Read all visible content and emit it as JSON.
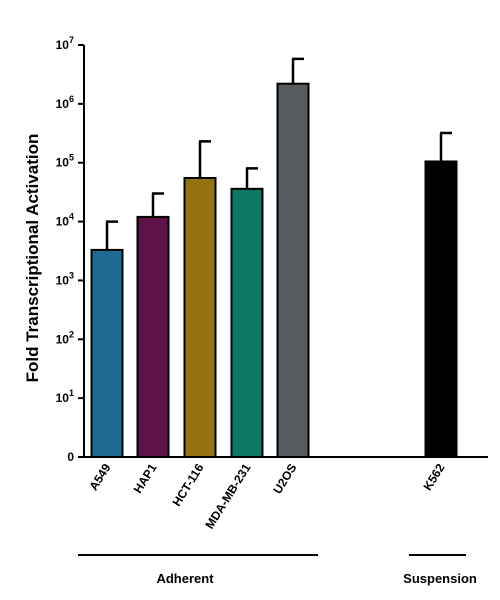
{
  "chart_data": {
    "type": "bar",
    "ylabel": "Fold  Transcriptional Activation",
    "xlabel": "",
    "title": "",
    "yscale": "log",
    "ylim": [
      1,
      10000000
    ],
    "yticks": [
      {
        "value": 1,
        "label": "0",
        "exp": ""
      },
      {
        "value": 10,
        "label": "10",
        "exp": "1"
      },
      {
        "value": 100,
        "label": "10",
        "exp": "2"
      },
      {
        "value": 1000,
        "label": "10",
        "exp": "3"
      },
      {
        "value": 10000,
        "label": "10",
        "exp": "4"
      },
      {
        "value": 100000,
        "label": "10",
        "exp": "5"
      },
      {
        "value": 1000000,
        "label": "10",
        "exp": "6"
      },
      {
        "value": 10000000,
        "label": "10",
        "exp": "7"
      }
    ],
    "categories": [
      "A549",
      "HAP1",
      "HCT-116",
      "MDA-MB-231",
      "U2OS",
      "K562"
    ],
    "values": [
      3300,
      12000,
      55000,
      36000,
      2200000,
      105000
    ],
    "error_upper": [
      10000,
      30000,
      230000,
      80000,
      5800000,
      320000
    ],
    "colors": [
      "#1f6a90",
      "#5e1448",
      "#94730e",
      "#0d7766",
      "#565b60",
      "#000000"
    ],
    "grid": false,
    "legend": "none",
    "groups": [
      {
        "label": "Adherent",
        "categories": [
          "A549",
          "HAP1",
          "HCT-116",
          "MDA-MB-231",
          "U2OS"
        ]
      },
      {
        "label": "Suspension",
        "categories": [
          "K562"
        ]
      }
    ]
  }
}
